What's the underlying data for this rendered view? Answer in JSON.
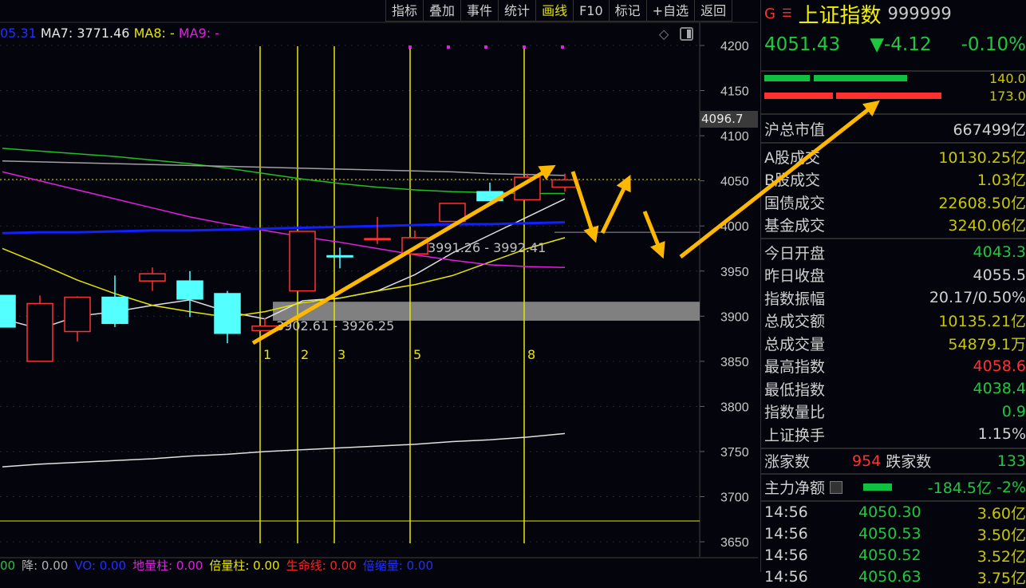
{
  "toolbar": [
    "指标",
    "叠加",
    "事件",
    "统计",
    "画线",
    "F10",
    "标记",
    "+自选",
    "返回"
  ],
  "toolbar_active": "画线",
  "ma_legend": {
    "ma6": "05.31",
    "ma7": "MA7: 3771.46",
    "ma8": "MA8: -",
    "ma9": "MA9: -"
  },
  "axis": {
    "ticks": [
      4200,
      4150,
      4100,
      4050,
      4000,
      3950,
      3900,
      3850,
      3800,
      3750,
      3700,
      3650
    ],
    "cursor_price": "4096.7"
  },
  "chart_labels": {
    "range1": "3902.61 - 3926.25",
    "range2": "3991.26 - 3992.41",
    "markers": [
      "1",
      "2",
      "3",
      "5",
      "8"
    ]
  },
  "candles": [
    {
      "o": 3923,
      "c": 3888,
      "h": 3923,
      "l": 3888
    },
    {
      "o": 3850,
      "c": 3914,
      "h": 3923,
      "l": 3850
    },
    {
      "o": 3883,
      "c": 3921,
      "h": 3922,
      "l": 3872
    },
    {
      "o": 3921,
      "c": 3892,
      "h": 3945,
      "l": 3888
    },
    {
      "o": 3939,
      "c": 3947,
      "h": 3954,
      "l": 3928
    },
    {
      "o": 3939,
      "c": 3919,
      "h": 3950,
      "l": 3899
    },
    {
      "o": 3925,
      "c": 3881,
      "h": 3928,
      "l": 3870
    },
    {
      "o": 3884,
      "c": 3889,
      "h": 3898,
      "l": 3884
    },
    {
      "o": 3928,
      "c": 3994,
      "h": 3994,
      "l": 3928
    },
    {
      "o": 3967,
      "c": 3966,
      "h": 3976,
      "l": 3953
    },
    {
      "o": 3985,
      "c": 3986,
      "h": 4010,
      "l": 3980
    },
    {
      "o": 3969,
      "c": 3987,
      "h": 3995,
      "l": 3969
    },
    {
      "o": 4005,
      "c": 4025,
      "h": 4025,
      "l": 4005
    },
    {
      "o": 4038,
      "c": 4028,
      "h": 4048,
      "l": 4028
    },
    {
      "o": 4029,
      "c": 4054,
      "h": 4058,
      "l": 4029
    },
    {
      "o": 4043,
      "c": 4051,
      "h": 4058,
      "l": 4038
    }
  ],
  "ma_lines": [
    {
      "color": "#e0e0e0",
      "values": [
        3897,
        3886,
        3900,
        3905,
        3912,
        3918,
        3905,
        3897,
        3917,
        3920,
        3928,
        3946,
        3970,
        3990,
        4010,
        4030
      ]
    },
    {
      "color": "#e6e600",
      "values": [
        3975,
        3958,
        3940,
        3925,
        3912,
        3905,
        3899,
        3905,
        3915,
        3920,
        3928,
        3935,
        3945,
        3960,
        3975,
        3987
      ]
    },
    {
      "color": "#e020e0",
      "values": [
        4060,
        4050,
        4040,
        4030,
        4020,
        4010,
        4002,
        3995,
        3988,
        3982,
        3975,
        3968,
        3962,
        3957,
        3955,
        3954
      ]
    },
    {
      "color": "#20c020",
      "values": [
        4086,
        4083,
        4080,
        4077,
        4073,
        4069,
        4064,
        4058,
        4052,
        4047,
        4043,
        4040,
        4038,
        4037,
        4036,
        4036
      ]
    },
    {
      "color": "#a0a0a0",
      "values": [
        4072,
        4071,
        4070,
        4069,
        4068,
        4067,
        4066,
        4065,
        4064,
        4063,
        4062,
        4061,
        4060,
        4058,
        4057,
        4056
      ]
    },
    {
      "color": "#1020ff",
      "values": [
        3992,
        3993,
        3993,
        3994,
        3995,
        3995,
        3996,
        3997,
        3998,
        3999,
        4000,
        4001,
        4002,
        4002,
        4003,
        4004
      ]
    },
    {
      "color": "#e0e0e0",
      "values": [
        3733,
        3736,
        3738,
        3740,
        3742,
        3745,
        3747,
        3750,
        3752,
        3754,
        3756,
        3758,
        3761,
        3763,
        3766,
        3770
      ]
    }
  ],
  "colors": {
    "up": "#ff3232",
    "down": "#54ffff",
    "accent": "#e6e600",
    "arrow": "#ffb800"
  },
  "panel": {
    "g": "G",
    "menu": "☰",
    "name": "上证指数",
    "code": "999999",
    "price": "4051.43",
    "change": "▼-4.12",
    "pct": "-0.10%",
    "bar_top": "140.0",
    "bar_bottom": "173.0",
    "market_cap": {
      "label": "沪总市值",
      "value": "667499亿"
    },
    "volumes": [
      {
        "label": "A股成交",
        "value": "10130.25亿"
      },
      {
        "label": "B股成交",
        "value": "1.03亿"
      },
      {
        "label": "国债成交",
        "value": "22608.50亿"
      },
      {
        "label": "基金成交",
        "value": "3240.06亿"
      }
    ],
    "stats": [
      {
        "label": "今日开盘",
        "value": "4043.3",
        "c": "g"
      },
      {
        "label": "昨日收盘",
        "value": "4055.5",
        "c": "w"
      },
      {
        "label": "指数振幅",
        "value": "20.17/0.50%",
        "c": "w"
      },
      {
        "label": "总成交额",
        "value": "10135.21亿",
        "c": "y"
      },
      {
        "label": "总成交量",
        "value": "54879.1万",
        "c": "y"
      },
      {
        "label": "最高指数",
        "value": "4058.6",
        "c": "r"
      },
      {
        "label": "最低指数",
        "value": "4038.4",
        "c": "g"
      },
      {
        "label": "指数量比",
        "value": "0.9",
        "c": "g"
      },
      {
        "label": "上证换手",
        "value": "1.15%",
        "c": "w"
      }
    ],
    "rise_label": "涨家数",
    "rise": "954",
    "fall_label": "跌家数",
    "fall": "133",
    "net_label": "主力净额",
    "net": "-184.5亿",
    "net_pct": "-2%",
    "ticks": [
      {
        "t": "14:56",
        "p": "4050.30",
        "v": "3.60亿"
      },
      {
        "t": "14:56",
        "p": "4050.53",
        "v": "3.50亿"
      },
      {
        "t": "14:56",
        "p": "4050.52",
        "v": "3.52亿"
      },
      {
        "t": "14:56",
        "p": "4050.63",
        "v": "3.75亿"
      }
    ]
  },
  "bottom": [
    {
      "t": "00",
      "c": "#1ec83c"
    },
    {
      "t": "降: 0.00",
      "c": "#b0b0b0"
    },
    {
      "t": "VO: 0.00",
      "c": "#2030ff"
    },
    {
      "t": "地量柱: 0.00",
      "c": "#e020e0"
    },
    {
      "t": "倍量柱: 0.00",
      "c": "#e6e600"
    },
    {
      "t": "生命线: 0.00",
      "c": "#ff2020"
    },
    {
      "t": "倍缩量: 0.00",
      "c": "#2030ff"
    }
  ]
}
